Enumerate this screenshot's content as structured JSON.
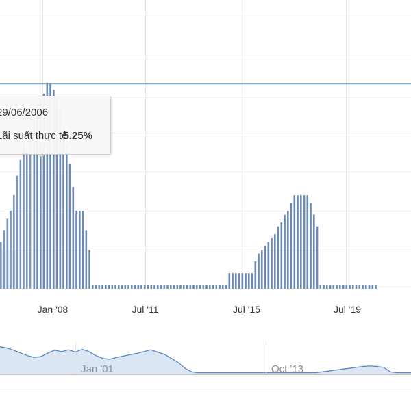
{
  "chart_data": {
    "type": "bar",
    "title": "",
    "xlabel": "",
    "ylabel": "",
    "x_tick_labels": [
      "Jan '08",
      "Jul '11",
      "Jul '15",
      "Jul '19"
    ],
    "series": [
      {
        "values": [
          4.4,
          4.6,
          4.9,
          5.0,
          5.25,
          5.25,
          5.1,
          4.9,
          4.6,
          4.1,
          3.7,
          3.2,
          2.6,
          2.0,
          2.0,
          2.0,
          1.5,
          1.0,
          0.1,
          0.1,
          0.1,
          0.1,
          0.1,
          0.1,
          0.1,
          0.1,
          0.1,
          0.1,
          0.1,
          0.1,
          0.1,
          0.1,
          0.1,
          0.1,
          0.1,
          0.1,
          0.1,
          0.1,
          0.1,
          0.1,
          0.1,
          0.1,
          0.1,
          0.1,
          0.1,
          0.1,
          0.1,
          0.1,
          0.1,
          0.1,
          0.1,
          0.1,
          0.1,
          0.1,
          0.1,
          0.1,
          0.1,
          0.1,
          0.1,
          0.1,
          0.4,
          0.4,
          0.4,
          0.4,
          0.4,
          0.4,
          0.4,
          0.4,
          0.7,
          0.9,
          1.0,
          1.1,
          1.2,
          1.3,
          1.4,
          1.6,
          1.7,
          1.9,
          2.0,
          2.2,
          2.4,
          2.4,
          2.4,
          2.4,
          2.4,
          2.2,
          1.9,
          1.6,
          0.1,
          0.1,
          0.1,
          0.1,
          0.1,
          0.1,
          0.1,
          0.1,
          0.1,
          0.1,
          0.1,
          0.1,
          0.1,
          0.1,
          0.1,
          0.1,
          0.1,
          0.1
        ],
        "color": "#6a8ab5"
      }
    ],
    "left_partial_values": [
      1.2,
      1.5,
      1.8,
      2.0,
      2.4,
      2.9,
      3.3,
      3.7,
      4.1,
      4.2
    ],
    "highlight": {
      "date": "29/06/2006",
      "series": "Lãi suất thực tế",
      "value": "5.25%"
    },
    "navigator": {
      "labels": [
        "Jan '01",
        "Oct '13"
      ],
      "values": [
        6.0,
        5.7,
        5.2,
        4.6,
        4.0,
        3.6,
        3.8,
        4.6,
        5.2,
        4.9,
        5.3,
        4.8,
        5.4,
        4.9,
        4.0,
        3.4,
        3.2,
        3.6,
        3.9,
        4.2,
        4.5,
        4.9,
        5.3,
        4.8,
        4.3,
        3.4,
        2.5,
        1.2,
        0.4,
        0.2,
        0.2,
        0.2,
        0.2,
        0.2,
        0.2,
        0.2,
        0.2,
        0.2,
        0.2,
        0.2,
        0.2,
        0.2,
        0.2,
        0.2,
        0.2,
        0.2,
        0.2,
        0.4,
        0.6,
        0.8,
        1.0,
        1.2,
        1.4,
        1.6,
        1.7,
        1.6,
        1.4,
        0.4,
        0.2,
        0.2,
        0.2
      ],
      "fill_color": "#dbe6f5",
      "line_color": "#4f7fb8"
    },
    "colors": {
      "bars": "#6a8ab5",
      "crosshair": "#5b9bd5",
      "grid": "#e6e6e6"
    }
  }
}
